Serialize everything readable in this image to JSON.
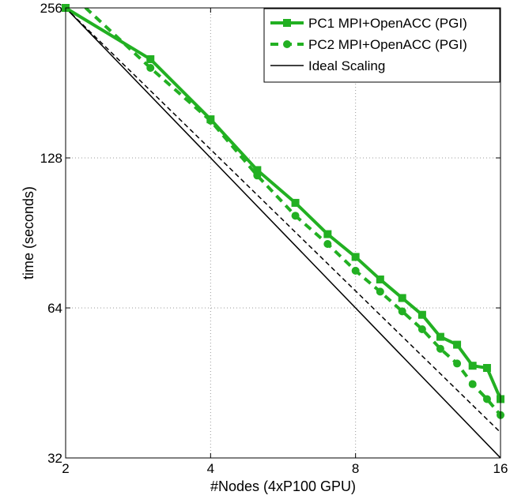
{
  "chart_data": {
    "type": "line",
    "xscale": "log2",
    "yscale": "log2",
    "xlim": [
      2,
      16
    ],
    "ylim": [
      32,
      256
    ],
    "xticks": [
      2,
      4,
      8,
      16
    ],
    "yticks": [
      32,
      64,
      128,
      256
    ],
    "xlabel": "#Nodes (4xP100 GPU)",
    "ylabel": "time (seconds)",
    "grid": true,
    "legend_position": "top-right",
    "series": [
      {
        "name": "PC1 MPI+OpenACC (PGI)",
        "color": "#22b022",
        "line_style": "solid",
        "marker": "square",
        "x": [
          2,
          3,
          4,
          5,
          6,
          7,
          8,
          9,
          10,
          11,
          12,
          13,
          14,
          15,
          16
        ],
        "y": [
          256,
          202,
          153,
          121,
          104,
          90,
          81,
          73,
          67,
          62,
          56,
          54,
          49,
          48.5,
          42
        ]
      },
      {
        "name": "PC2 MPI+OpenACC (PGI)",
        "color": "#22b022",
        "line_style": "dashed",
        "marker": "circle",
        "x": [
          2,
          3,
          4,
          5,
          6,
          7,
          8,
          9,
          10,
          11,
          12,
          13,
          14,
          15,
          16
        ],
        "y": [
          279,
          194,
          152,
          118,
          98,
          86,
          76,
          69,
          63,
          58,
          53,
          49.5,
          45,
          42,
          39
        ]
      },
      {
        "name": "",
        "color": "#000000",
        "line_style": "dashed",
        "marker": "none",
        "x": [
          2,
          16
        ],
        "y": [
          256,
          36
        ]
      },
      {
        "name": "Ideal Scaling",
        "color": "#000000",
        "line_style": "solid",
        "marker": "none",
        "x": [
          2,
          16
        ],
        "y": [
          256,
          32
        ]
      }
    ]
  }
}
